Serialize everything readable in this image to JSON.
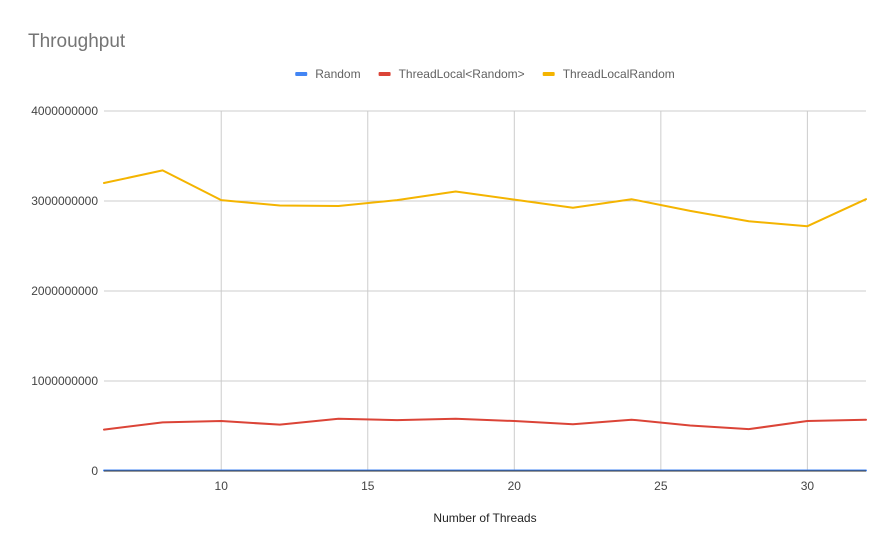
{
  "chart_data": {
    "type": "line",
    "title": "Throughput",
    "xlabel": "Number of Threads",
    "ylabel": "",
    "x": [
      6,
      8,
      10,
      12,
      14,
      16,
      18,
      20,
      22,
      24,
      26,
      28,
      30,
      32
    ],
    "xlim": [
      6,
      32
    ],
    "ylim": [
      0,
      4000000000
    ],
    "xticks": [
      10,
      15,
      20,
      25,
      30
    ],
    "xtick_labels": [
      "10",
      "15",
      "20",
      "25",
      "30"
    ],
    "yticks": [
      0,
      1000000000,
      2000000000,
      3000000000,
      4000000000
    ],
    "ytick_labels": [
      "0",
      "1000000000",
      "2000000000",
      "3000000000",
      "4000000000"
    ],
    "grid": true,
    "legend_position": "top",
    "series": [
      {
        "name": "Random",
        "color": "#4285f4",
        "values": [
          5000000,
          5000000,
          5000000,
          5000000,
          5000000,
          5000000,
          5000000,
          5000000,
          5000000,
          5000000,
          5000000,
          5000000,
          5000000,
          5000000
        ]
      },
      {
        "name": "ThreadLocal<Random>",
        "color": "#db4437",
        "values": [
          460000000,
          540000000,
          555000000,
          515000000,
          580000000,
          565000000,
          580000000,
          555000000,
          520000000,
          570000000,
          505000000,
          465000000,
          555000000,
          570000000
        ]
      },
      {
        "name": "ThreadLocalRandom",
        "color": "#f4b400",
        "values": [
          3200000000,
          3340000000,
          3010000000,
          2950000000,
          2945000000,
          3010000000,
          3105000000,
          3015000000,
          2925000000,
          3020000000,
          2890000000,
          2775000000,
          2720000000,
          3020000000
        ]
      }
    ]
  }
}
